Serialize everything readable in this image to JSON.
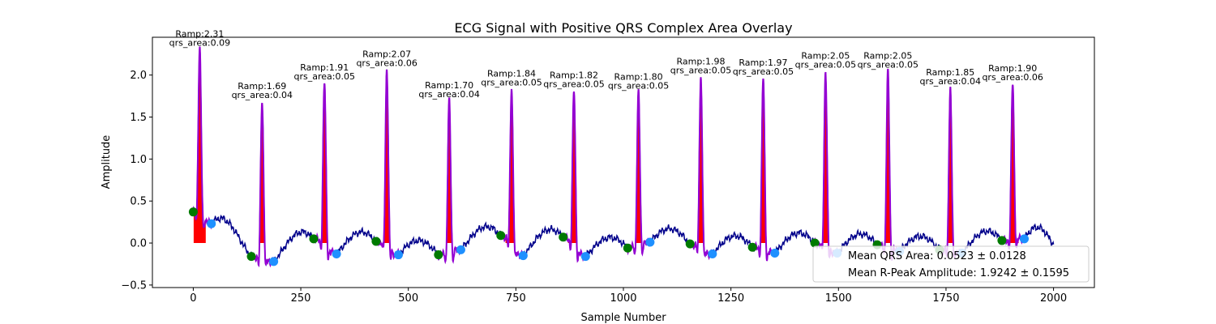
{
  "chart_data": {
    "type": "line",
    "title": "ECG Signal with Positive QRS Complex Area Overlay",
    "xlabel": "Sample Number",
    "ylabel": "Amplitude",
    "xlim": [
      -95,
      2095
    ],
    "ylim": [
      -0.53,
      2.45
    ],
    "xticks": [
      0,
      250,
      500,
      750,
      1000,
      1250,
      1500,
      1750,
      2000
    ],
    "yticks": [
      -0.5,
      0.0,
      0.5,
      1.0,
      1.5,
      2.0
    ],
    "xtick_labels": [
      "0",
      "250",
      "500",
      "750",
      "1000",
      "1250",
      "1500",
      "1750",
      "2000"
    ],
    "ytick_labels": [
      "−0.5",
      "0.0",
      "0.5",
      "1.0",
      "1.5",
      "2.0"
    ],
    "grid": false,
    "legend_position": "lower-right",
    "legend": [
      "Mean QRS Area: 0.0523 ± 0.0128",
      "Mean R-Peak Amplitude: 1.9242 ± 0.1595"
    ],
    "colors": {
      "signal": "#00008b",
      "qrs_segment": "#9400d3",
      "area_fill": "#ff0000",
      "onset_marker": "#007a00",
      "offset_marker": "#1e90ff"
    },
    "beats": [
      {
        "r_sample": 15,
        "r_amp": 2.31,
        "qrs_area": 0.09,
        "ramp_label": "Ramp:2.31",
        "area_label": "qrs_area:0.09",
        "onset_x": 0,
        "onset_y": 0.37,
        "offset_x": 42,
        "offset_y": 0.23
      },
      {
        "r_sample": 160,
        "r_amp": 1.69,
        "qrs_area": 0.04,
        "ramp_label": "Ramp:1.69",
        "area_label": "qrs_area:0.04",
        "onset_x": 135,
        "onset_y": -0.16,
        "offset_x": 187,
        "offset_y": -0.22
      },
      {
        "r_sample": 305,
        "r_amp": 1.91,
        "qrs_area": 0.05,
        "ramp_label": "Ramp:1.91",
        "area_label": "qrs_area:0.05",
        "onset_x": 280,
        "onset_y": 0.05,
        "offset_x": 333,
        "offset_y": -0.13
      },
      {
        "r_sample": 450,
        "r_amp": 2.07,
        "qrs_area": 0.06,
        "ramp_label": "Ramp:2.07",
        "area_label": "qrs_area:0.06",
        "onset_x": 425,
        "onset_y": 0.02,
        "offset_x": 477,
        "offset_y": -0.14
      },
      {
        "r_sample": 595,
        "r_amp": 1.7,
        "qrs_area": 0.04,
        "ramp_label": "Ramp:1.70",
        "area_label": "qrs_area:0.04",
        "onset_x": 570,
        "onset_y": -0.14,
        "offset_x": 622,
        "offset_y": -0.08
      },
      {
        "r_sample": 740,
        "r_amp": 1.84,
        "qrs_area": 0.05,
        "ramp_label": "Ramp:1.84",
        "area_label": "qrs_area:0.05",
        "onset_x": 715,
        "onset_y": 0.09,
        "offset_x": 767,
        "offset_y": -0.15
      },
      {
        "r_sample": 885,
        "r_amp": 1.82,
        "qrs_area": 0.05,
        "ramp_label": "Ramp:1.82",
        "area_label": "qrs_area:0.05",
        "onset_x": 860,
        "onset_y": 0.07,
        "offset_x": 912,
        "offset_y": -0.16
      },
      {
        "r_sample": 1035,
        "r_amp": 1.8,
        "qrs_area": 0.05,
        "ramp_label": "Ramp:1.80",
        "area_label": "qrs_area:0.05",
        "onset_x": 1010,
        "onset_y": -0.06,
        "offset_x": 1062,
        "offset_y": 0.01
      },
      {
        "r_sample": 1180,
        "r_amp": 1.98,
        "qrs_area": 0.05,
        "ramp_label": "Ramp:1.98",
        "area_label": "qrs_area:0.05",
        "onset_x": 1155,
        "onset_y": -0.01,
        "offset_x": 1207,
        "offset_y": -0.13
      },
      {
        "r_sample": 1325,
        "r_amp": 1.97,
        "qrs_area": 0.05,
        "ramp_label": "Ramp:1.97",
        "area_label": "qrs_area:0.05",
        "onset_x": 1300,
        "onset_y": -0.05,
        "offset_x": 1352,
        "offset_y": -0.12
      },
      {
        "r_sample": 1470,
        "r_amp": 2.05,
        "qrs_area": 0.05,
        "ramp_label": "Ramp:2.05",
        "area_label": "qrs_area:0.05",
        "onset_x": 1445,
        "onset_y": 0.0,
        "offset_x": 1497,
        "offset_y": -0.12
      },
      {
        "r_sample": 1615,
        "r_amp": 2.05,
        "qrs_area": 0.05,
        "ramp_label": "Ramp:2.05",
        "area_label": "qrs_area:0.05",
        "onset_x": 1590,
        "onset_y": -0.02,
        "offset_x": 1642,
        "offset_y": -0.1
      },
      {
        "r_sample": 1760,
        "r_amp": 1.85,
        "qrs_area": 0.04,
        "ramp_label": "Ramp:1.85",
        "area_label": "qrs_area:0.04",
        "onset_x": 1735,
        "onset_y": -0.08,
        "offset_x": 1787,
        "offset_y": -0.12
      },
      {
        "r_sample": 1905,
        "r_amp": 1.9,
        "qrs_area": 0.06,
        "ramp_label": "Ramp:1.90",
        "area_label": "qrs_area:0.06",
        "onset_x": 1880,
        "onset_y": 0.03,
        "offset_x": 1932,
        "offset_y": 0.05
      }
    ]
  }
}
